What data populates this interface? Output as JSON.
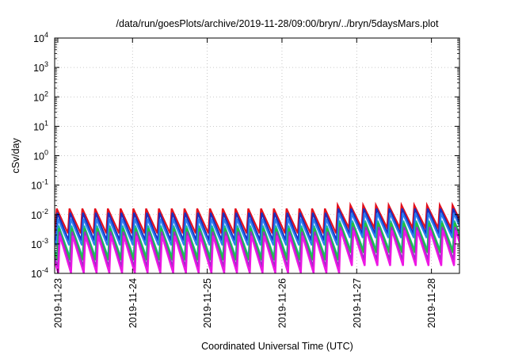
{
  "chart_data": {
    "type": "line",
    "title": "/data/run/goesPlots/archive/2019-11-28/09:00/bryn/../bryn/5daysMars.plot",
    "xlabel": "Coordinated Universal Time (UTC)",
    "ylabel": "cSv/day",
    "x_scale": "time",
    "y_scale": "log",
    "xlim": [
      "2019-11-22 23:00",
      "2019-11-28 09:00"
    ],
    "ylim": [
      0.0001,
      10000
    ],
    "grid": true,
    "x_ticks": [
      {
        "label": "2019-11-23",
        "value": "2019-11-23 00:00"
      },
      {
        "label": "2019-11-24",
        "value": "2019-11-24 00:00"
      },
      {
        "label": "2019-11-25",
        "value": "2019-11-25 00:00"
      },
      {
        "label": "2019-11-26",
        "value": "2019-11-26 00:00"
      },
      {
        "label": "2019-11-27",
        "value": "2019-11-27 00:00"
      },
      {
        "label": "2019-11-28",
        "value": "2019-11-28 00:00"
      }
    ],
    "y_ticks": [
      {
        "base": "10",
        "exp": "4",
        "value": 10000
      },
      {
        "base": "10",
        "exp": "3",
        "value": 1000
      },
      {
        "base": "10",
        "exp": "2",
        "value": 100
      },
      {
        "base": "10",
        "exp": "1",
        "value": 10
      },
      {
        "base": "10",
        "exp": "0",
        "value": 1
      },
      {
        "base": "10",
        "exp": "-1",
        "value": 0.1
      },
      {
        "base": "10",
        "exp": "-2",
        "value": 0.01
      },
      {
        "base": "10",
        "exp": "-3",
        "value": 0.001
      },
      {
        "base": "10",
        "exp": "-4",
        "value": 0.0001
      }
    ],
    "pattern": {
      "description_free": true,
      "period_hours": 4.1,
      "first_peak": "2019-11-22 23:40",
      "step_change_at": "2019-11-26 16:00"
    },
    "series": [
      {
        "color": "#e4101c",
        "peak_before": 0.016,
        "trough_before": 0.0023,
        "peak_after": 0.021,
        "trough_after": 0.0035,
        "offset_hours": 0.0
      },
      {
        "color": "#1a2fbf",
        "peak_before": 0.0115,
        "trough_before": 0.0013,
        "peak_after": 0.016,
        "trough_after": 0.0022,
        "offset_hours": 0.2
      },
      {
        "color": "#2a7df0",
        "peak_before": 0.0072,
        "trough_before": 0.0009,
        "peak_after": 0.011,
        "trough_after": 0.0016,
        "offset_hours": 0.4
      },
      {
        "color": "#18b4a8",
        "peak_before": 0.0042,
        "trough_before": 0.00035,
        "peak_after": 0.0062,
        "trough_after": 0.0006,
        "offset_hours": 0.6
      },
      {
        "color": "#22c23a",
        "peak_before": 0.0034,
        "trough_before": 0.00028,
        "peak_after": 0.0052,
        "trough_after": 0.0005,
        "offset_hours": 0.7
      },
      {
        "color": "#9a2ec6",
        "peak_before": 0.0026,
        "trough_before": 0.00016,
        "peak_after": 0.0038,
        "trough_after": 0.00028,
        "offset_hours": 0.85
      },
      {
        "color": "#ee16e4",
        "peak_before": 0.0019,
        "trough_before": 0.0001,
        "peak_after": 0.0029,
        "trough_after": 0.00018,
        "offset_hours": 1.0
      }
    ]
  }
}
